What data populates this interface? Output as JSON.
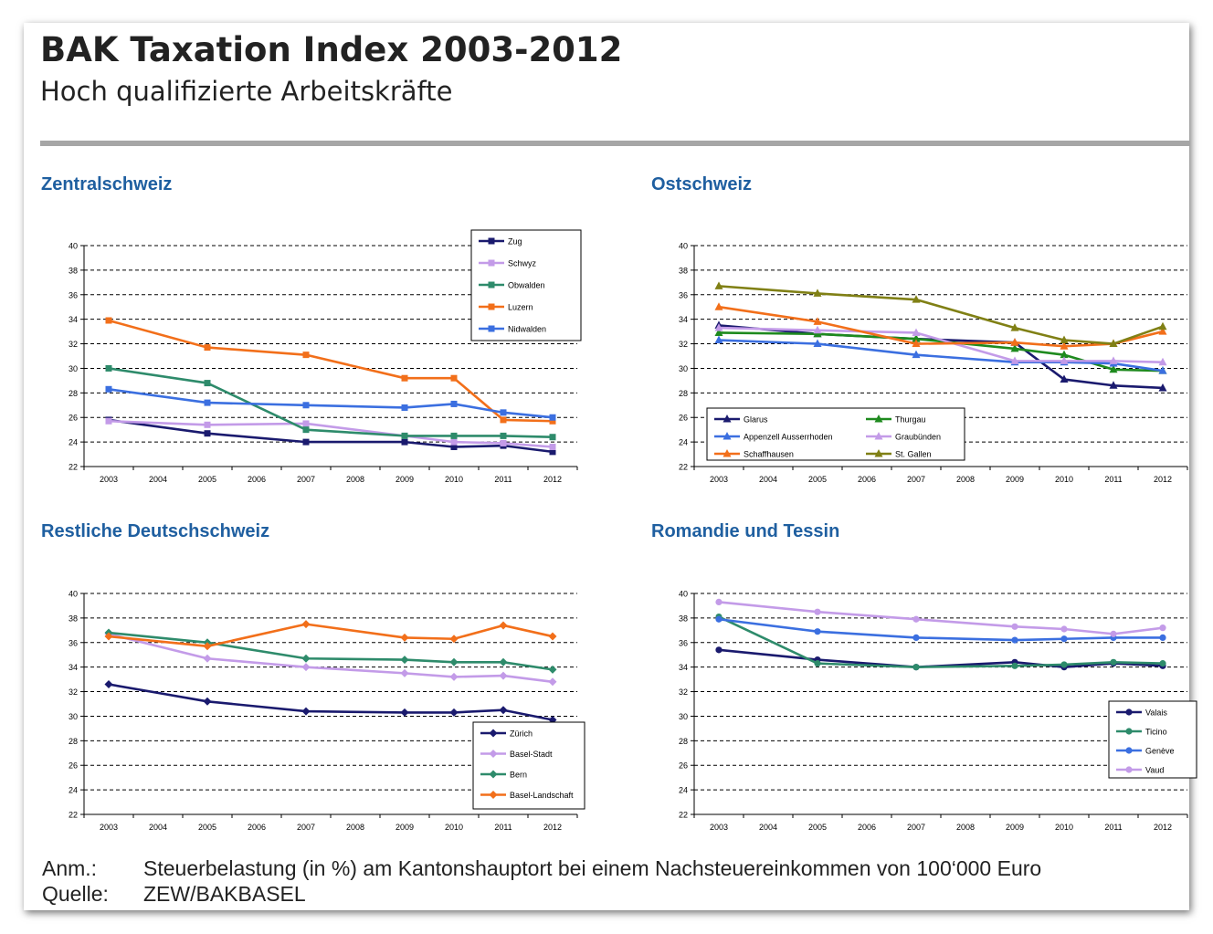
{
  "title": "BAK Taxation Index 2003-2012",
  "subtitle": "Hoch qualifizierte Arbeitskräfte",
  "footnote": {
    "note_label": "Anm.:",
    "note_text": "Steuerbelastung (in %) am Kantonshauptort bei einem Nachsteuereinkommen von 100‘000 Euro",
    "source_label": "Quelle:",
    "source_text": "ZEW/BAKBASEL"
  },
  "chart_data": [
    {
      "type": "line",
      "title": "Zentralschweiz",
      "categories": [
        "2003",
        "2004",
        "2005",
        "2006",
        "2007",
        "2008",
        "2009",
        "2010",
        "2011",
        "2012"
      ],
      "ylim": [
        22,
        40
      ],
      "yticks": [
        22,
        24,
        26,
        28,
        30,
        32,
        34,
        36,
        38,
        40
      ],
      "grid": true,
      "legend_placement": "top-right",
      "series": [
        {
          "name": "Zug",
          "color": "#1a1a6e",
          "marker": "square",
          "x": [
            "2003",
            "2005",
            "2007",
            "2009",
            "2010",
            "2011",
            "2012"
          ],
          "values": [
            25.8,
            24.7,
            24.0,
            24.0,
            23.6,
            23.7,
            23.2
          ]
        },
        {
          "name": "Schwyz",
          "color": "#c39be8",
          "marker": "square",
          "x": [
            "2003",
            "2005",
            "2007",
            "2009",
            "2010",
            "2011",
            "2012"
          ],
          "values": [
            25.7,
            25.4,
            25.5,
            24.5,
            24.0,
            23.9,
            23.6
          ]
        },
        {
          "name": "Obwalden",
          "color": "#2e8b6b",
          "marker": "square",
          "x": [
            "2003",
            "2005",
            "2007",
            "2009",
            "2010",
            "2011",
            "2012"
          ],
          "values": [
            30.0,
            28.8,
            25.0,
            24.5,
            24.5,
            24.5,
            24.4
          ]
        },
        {
          "name": "Luzern",
          "color": "#f26f1a",
          "marker": "square",
          "x": [
            "2003",
            "2005",
            "2007",
            "2009",
            "2010",
            "2011",
            "2012"
          ],
          "values": [
            33.9,
            31.7,
            31.1,
            29.2,
            29.2,
            25.8,
            25.7
          ]
        },
        {
          "name": "Nidwalden",
          "color": "#3b6fe0",
          "marker": "square",
          "x": [
            "2003",
            "2005",
            "2007",
            "2009",
            "2010",
            "2011",
            "2012"
          ],
          "values": [
            28.3,
            27.2,
            27.0,
            26.8,
            27.1,
            26.4,
            26.0
          ]
        }
      ]
    },
    {
      "type": "line",
      "title": "Ostschweiz",
      "categories": [
        "2003",
        "2004",
        "2005",
        "2006",
        "2007",
        "2008",
        "2009",
        "2010",
        "2011",
        "2012"
      ],
      "ylim": [
        22,
        40
      ],
      "yticks": [
        22,
        24,
        26,
        28,
        30,
        32,
        34,
        36,
        38,
        40
      ],
      "grid": true,
      "legend_placement": "bottom-left",
      "series": [
        {
          "name": "Glarus",
          "color": "#1a1a6e",
          "marker": "triangle",
          "x": [
            "2003",
            "2005",
            "2007",
            "2009",
            "2010",
            "2011",
            "2012"
          ],
          "values": [
            33.5,
            32.8,
            32.4,
            32.1,
            29.1,
            28.6,
            28.4
          ]
        },
        {
          "name": "Thurgau",
          "color": "#1e8a1e",
          "marker": "triangle",
          "x": [
            "2003",
            "2005",
            "2007",
            "2009",
            "2010",
            "2011",
            "2012"
          ],
          "values": [
            32.9,
            32.8,
            32.4,
            31.6,
            31.1,
            29.9,
            29.8
          ]
        },
        {
          "name": "Appenzell Ausserrhoden",
          "color": "#3b6fe0",
          "marker": "triangle",
          "x": [
            "2003",
            "2005",
            "2007",
            "2009",
            "2010",
            "2011",
            "2012"
          ],
          "values": [
            32.3,
            32.0,
            31.1,
            30.5,
            30.5,
            30.4,
            29.8
          ]
        },
        {
          "name": "Graubünden",
          "color": "#c39be8",
          "marker": "triangle",
          "x": [
            "2003",
            "2005",
            "2007",
            "2009",
            "2010",
            "2011",
            "2012"
          ],
          "values": [
            33.3,
            33.1,
            32.9,
            30.6,
            30.6,
            30.6,
            30.5
          ]
        },
        {
          "name": "Schaffhausen",
          "color": "#f26f1a",
          "marker": "triangle",
          "x": [
            "2003",
            "2005",
            "2007",
            "2009",
            "2010",
            "2011",
            "2012"
          ],
          "values": [
            35.0,
            33.8,
            32.0,
            32.1,
            31.8,
            32.0,
            33.0
          ]
        },
        {
          "name": "St. Gallen",
          "color": "#808015",
          "marker": "triangle",
          "x": [
            "2003",
            "2005",
            "2007",
            "2009",
            "2010",
            "2011",
            "2012"
          ],
          "values": [
            36.7,
            36.1,
            35.6,
            33.3,
            32.3,
            32.0,
            33.4
          ]
        }
      ]
    },
    {
      "type": "line",
      "title": "Restliche Deutschschweiz",
      "categories": [
        "2003",
        "2004",
        "2005",
        "2006",
        "2007",
        "2008",
        "2009",
        "2010",
        "2011",
        "2012"
      ],
      "ylim": [
        22,
        40
      ],
      "yticks": [
        22,
        24,
        26,
        28,
        30,
        32,
        34,
        36,
        38,
        40
      ],
      "grid": true,
      "legend_placement": "bottom-right",
      "series": [
        {
          "name": "Zürich",
          "color": "#1a1a6e",
          "marker": "diamond",
          "x": [
            "2003",
            "2005",
            "2007",
            "2009",
            "2010",
            "2011",
            "2012"
          ],
          "values": [
            32.6,
            31.2,
            30.4,
            30.3,
            30.3,
            30.5,
            29.7
          ]
        },
        {
          "name": "Basel-Stadt",
          "color": "#c39be8",
          "marker": "diamond",
          "x": [
            "2003",
            "2005",
            "2007",
            "2009",
            "2010",
            "2011",
            "2012"
          ],
          "values": [
            36.7,
            34.7,
            34.0,
            33.5,
            33.2,
            33.3,
            32.8
          ]
        },
        {
          "name": "Bern",
          "color": "#2e8b6b",
          "marker": "diamond",
          "x": [
            "2003",
            "2005",
            "2007",
            "2009",
            "2010",
            "2011",
            "2012"
          ],
          "values": [
            36.8,
            36.0,
            34.7,
            34.6,
            34.4,
            34.4,
            33.8
          ]
        },
        {
          "name": "Basel-Landschaft",
          "color": "#f26f1a",
          "marker": "diamond",
          "x": [
            "2003",
            "2005",
            "2007",
            "2009",
            "2010",
            "2011",
            "2012"
          ],
          "values": [
            36.5,
            35.7,
            37.5,
            36.4,
            36.3,
            37.4,
            36.5
          ]
        }
      ]
    },
    {
      "type": "line",
      "title": "Romandie und Tessin",
      "categories": [
        "2003",
        "2004",
        "2005",
        "2006",
        "2007",
        "2008",
        "2009",
        "2010",
        "2011",
        "2012"
      ],
      "ylim": [
        22,
        40
      ],
      "yticks": [
        22,
        24,
        26,
        28,
        30,
        32,
        34,
        36,
        38,
        40
      ],
      "grid": true,
      "legend_placement": "right",
      "series": [
        {
          "name": "Valais",
          "color": "#1a1a6e",
          "marker": "circle",
          "x": [
            "2003",
            "2005",
            "2007",
            "2009",
            "2010",
            "2011",
            "2012"
          ],
          "values": [
            35.4,
            34.6,
            34.0,
            34.4,
            34.0,
            34.3,
            34.1
          ]
        },
        {
          "name": "Ticino",
          "color": "#2e8b6b",
          "marker": "circle",
          "x": [
            "2003",
            "2005",
            "2007",
            "2009",
            "2010",
            "2011",
            "2012"
          ],
          "values": [
            38.1,
            34.3,
            34.0,
            34.1,
            34.2,
            34.4,
            34.3
          ]
        },
        {
          "name": "Genève",
          "color": "#3b6fe0",
          "marker": "circle",
          "x": [
            "2003",
            "2005",
            "2007",
            "2009",
            "2010",
            "2011",
            "2012"
          ],
          "values": [
            37.9,
            36.9,
            36.4,
            36.2,
            36.3,
            36.4,
            36.4
          ]
        },
        {
          "name": "Vaud",
          "color": "#c39be8",
          "marker": "circle",
          "x": [
            "2003",
            "2005",
            "2007",
            "2009",
            "2010",
            "2011",
            "2012"
          ],
          "values": [
            39.3,
            38.5,
            37.9,
            37.3,
            37.1,
            36.7,
            37.2
          ]
        }
      ]
    }
  ]
}
